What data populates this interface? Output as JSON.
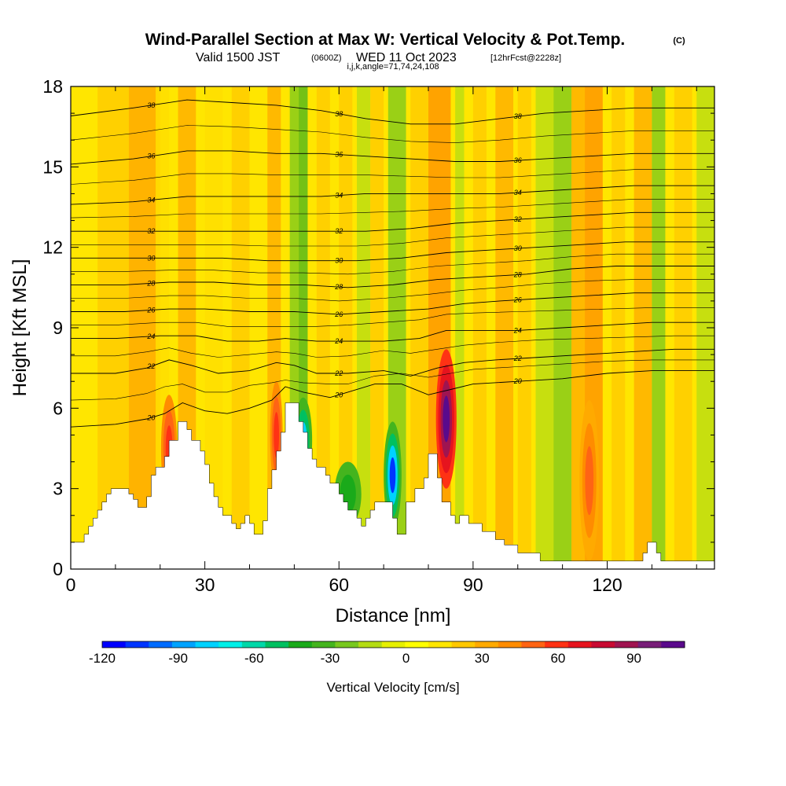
{
  "title": {
    "main": "Wind-Parallel Section at Max W: Vertical Velocity & Pot.Temp.",
    "copyright": "(C)",
    "valid_a": "Valid 1500 JST",
    "valid_utc": "(0600Z)",
    "valid_b": "WED 11 Oct 2023",
    "forecast": "[12hrFcst@2228z]",
    "params": "i,j,k,angle=71,74,24,108"
  },
  "chart_data": {
    "type": "heatmap",
    "xlabel": "Distance [nm]",
    "ylabel": "Height [Kft MSL]",
    "xlim": [
      0,
      144
    ],
    "ylim": [
      0,
      18
    ],
    "xticks": [
      0,
      30,
      60,
      90,
      120
    ],
    "yticks": [
      0,
      3,
      6,
      9,
      12,
      15,
      18
    ],
    "colorbar": {
      "label": "Vertical Velocity [cm/s]",
      "ticks": [
        -120,
        -90,
        -60,
        -30,
        0,
        30,
        60,
        90
      ],
      "range": [
        -120,
        110
      ],
      "colors": [
        "#0000ff",
        "#0036ff",
        "#006cff",
        "#00a3ff",
        "#00d2ff",
        "#00f0e8",
        "#00d8a8",
        "#00c060",
        "#1aaa1a",
        "#44b41e",
        "#78c81e",
        "#b4dc14",
        "#e6f000",
        "#ffff00",
        "#ffe600",
        "#ffc800",
        "#ffaa00",
        "#ff8c00",
        "#ff6414",
        "#ff3214",
        "#e6141e",
        "#c80a32",
        "#a01450",
        "#781e78",
        "#5a0a8c"
      ]
    },
    "terrain_profile": [
      [
        0,
        1
      ],
      [
        3,
        1
      ],
      [
        3,
        1.3
      ],
      [
        4,
        1.3
      ],
      [
        4,
        1.6
      ],
      [
        5,
        1.6
      ],
      [
        5,
        1.9
      ],
      [
        6,
        1.9
      ],
      [
        6,
        2.2
      ],
      [
        7,
        2.2
      ],
      [
        7,
        2.5
      ],
      [
        8,
        2.5
      ],
      [
        8,
        2.8
      ],
      [
        9,
        2.8
      ],
      [
        9,
        3
      ],
      [
        13,
        3
      ],
      [
        13,
        2.8
      ],
      [
        14,
        2.8
      ],
      [
        14,
        2.6
      ],
      [
        15,
        2.6
      ],
      [
        15,
        2.3
      ],
      [
        17,
        2.3
      ],
      [
        17,
        2.7
      ],
      [
        18,
        2.7
      ],
      [
        18,
        3.5
      ],
      [
        19,
        3.5
      ],
      [
        19,
        3.8
      ],
      [
        21,
        3.8
      ],
      [
        21,
        4.2
      ],
      [
        22,
        4.2
      ],
      [
        22,
        4.8
      ],
      [
        24,
        4.8
      ],
      [
        24,
        5.5
      ],
      [
        26,
        5.5
      ],
      [
        26,
        5.2
      ],
      [
        27,
        5.2
      ],
      [
        27,
        4.8
      ],
      [
        29,
        4.8
      ],
      [
        29,
        4.4
      ],
      [
        30,
        4.4
      ],
      [
        30,
        3.9
      ],
      [
        31,
        3.9
      ],
      [
        31,
        3.2
      ],
      [
        32,
        3.2
      ],
      [
        32,
        2.7
      ],
      [
        33,
        2.7
      ],
      [
        33,
        2.3
      ],
      [
        34,
        2.3
      ],
      [
        34,
        2
      ],
      [
        36,
        2
      ],
      [
        36,
        1.7
      ],
      [
        37,
        1.7
      ],
      [
        37,
        1.5
      ],
      [
        38,
        1.5
      ],
      [
        38,
        1.7
      ],
      [
        39,
        1.7
      ],
      [
        39,
        2
      ],
      [
        40,
        2
      ],
      [
        40,
        1.7
      ],
      [
        41,
        1.7
      ],
      [
        41,
        1.3
      ],
      [
        43,
        1.3
      ],
      [
        43,
        1.8
      ],
      [
        44,
        1.8
      ],
      [
        44,
        3
      ],
      [
        45,
        3
      ],
      [
        45,
        3.7
      ],
      [
        46,
        3.7
      ],
      [
        46,
        4.4
      ],
      [
        47,
        4.4
      ],
      [
        47,
        5.1
      ],
      [
        48,
        5.1
      ],
      [
        48,
        6.2
      ],
      [
        51,
        6.2
      ],
      [
        51,
        5.5
      ],
      [
        52,
        5.5
      ],
      [
        52,
        5.1
      ],
      [
        53,
        5.1
      ],
      [
        53,
        4.5
      ],
      [
        54,
        4.5
      ],
      [
        54,
        4.1
      ],
      [
        55,
        4.1
      ],
      [
        55,
        3.8
      ],
      [
        57,
        3.8
      ],
      [
        57,
        3.5
      ],
      [
        58,
        3.5
      ],
      [
        58,
        3.2
      ],
      [
        60,
        3.2
      ],
      [
        60,
        2.8
      ],
      [
        61,
        2.8
      ],
      [
        61,
        2.5
      ],
      [
        62,
        2.5
      ],
      [
        62,
        2.2
      ],
      [
        64,
        2.2
      ],
      [
        64,
        1.9
      ],
      [
        65,
        1.9
      ],
      [
        65,
        1.6
      ],
      [
        66,
        1.6
      ],
      [
        66,
        1.9
      ],
      [
        67,
        1.9
      ],
      [
        67,
        2.2
      ],
      [
        68,
        2.2
      ],
      [
        68,
        2.5
      ],
      [
        72,
        2.5
      ],
      [
        72,
        1.9
      ],
      [
        73,
        1.9
      ],
      [
        73,
        1.3
      ],
      [
        75,
        1.3
      ],
      [
        75,
        2.5
      ],
      [
        77,
        2.5
      ],
      [
        77,
        3
      ],
      [
        79,
        3
      ],
      [
        79,
        3.4
      ],
      [
        80,
        3.4
      ],
      [
        80,
        4.3
      ],
      [
        82,
        4.3
      ],
      [
        82,
        3.4
      ],
      [
        83,
        3.4
      ],
      [
        83,
        2.5
      ],
      [
        85,
        2.5
      ],
      [
        85,
        2
      ],
      [
        86,
        2
      ],
      [
        86,
        1.7
      ],
      [
        87,
        1.7
      ],
      [
        87,
        2
      ],
      [
        89,
        2
      ],
      [
        89,
        1.7
      ],
      [
        92,
        1.7
      ],
      [
        92,
        1.4
      ],
      [
        95,
        1.4
      ],
      [
        95,
        1.1
      ],
      [
        97,
        1.1
      ],
      [
        97,
        0.9
      ],
      [
        100,
        0.9
      ],
      [
        100,
        0.6
      ],
      [
        105,
        0.6
      ],
      [
        105,
        0.3
      ],
      [
        128,
        0.3
      ],
      [
        128,
        0.6
      ],
      [
        129,
        0.6
      ],
      [
        129,
        1
      ],
      [
        131,
        1
      ],
      [
        131,
        0.6
      ],
      [
        132,
        0.6
      ],
      [
        132,
        0.3
      ],
      [
        144,
        0.3
      ],
      [
        144,
        0
      ]
    ],
    "theta_contours": [
      {
        "value": 20,
        "label": "20",
        "levels": [
          [
            0,
            5.3
          ],
          [
            10,
            5.4
          ],
          [
            17,
            5.6
          ],
          [
            21,
            5.8
          ],
          [
            25,
            6.2
          ],
          [
            30,
            5.9
          ],
          [
            35,
            5.8
          ],
          [
            40,
            6
          ],
          [
            45,
            6.3
          ],
          [
            48,
            6.8
          ],
          [
            52,
            6.6
          ],
          [
            58,
            6.4
          ],
          [
            62,
            6.6
          ],
          [
            68,
            6.9
          ],
          [
            74,
            6.9
          ],
          [
            80,
            6.5
          ],
          [
            85,
            6.7
          ],
          [
            90,
            6.9
          ],
          [
            100,
            7
          ],
          [
            110,
            7.1
          ],
          [
            120,
            7.3
          ],
          [
            130,
            7.4
          ],
          [
            144,
            7.4
          ]
        ]
      },
      {
        "value": 22,
        "label": "22",
        "levels": [
          [
            0,
            7.3
          ],
          [
            10,
            7.3
          ],
          [
            17,
            7.5
          ],
          [
            22,
            7.8
          ],
          [
            27,
            7.6
          ],
          [
            33,
            7.3
          ],
          [
            40,
            7.4
          ],
          [
            46,
            7.7
          ],
          [
            50,
            7.6
          ],
          [
            55,
            7.3
          ],
          [
            62,
            7.3
          ],
          [
            70,
            7.4
          ],
          [
            76,
            7.2
          ],
          [
            82,
            7.5
          ],
          [
            88,
            7.7
          ],
          [
            95,
            7.8
          ],
          [
            105,
            7.9
          ],
          [
            115,
            8.0
          ],
          [
            125,
            8.1
          ],
          [
            135,
            8.2
          ],
          [
            144,
            8.2
          ]
        ]
      },
      {
        "value": 24,
        "label": "24",
        "levels": [
          [
            0,
            8.6
          ],
          [
            10,
            8.6
          ],
          [
            20,
            8.7
          ],
          [
            28,
            8.7
          ],
          [
            35,
            8.5
          ],
          [
            42,
            8.5
          ],
          [
            48,
            8.6
          ],
          [
            55,
            8.5
          ],
          [
            62,
            8.5
          ],
          [
            70,
            8.5
          ],
          [
            78,
            8.6
          ],
          [
            84,
            8.9
          ],
          [
            90,
            8.9
          ],
          [
            100,
            8.9
          ],
          [
            110,
            9.0
          ],
          [
            120,
            9.1
          ],
          [
            130,
            9.2
          ],
          [
            144,
            9.2
          ]
        ]
      },
      {
        "value": 26,
        "label": "26",
        "levels": [
          [
            0,
            9.6
          ],
          [
            12,
            9.6
          ],
          [
            22,
            9.7
          ],
          [
            30,
            9.7
          ],
          [
            40,
            9.6
          ],
          [
            50,
            9.6
          ],
          [
            60,
            9.5
          ],
          [
            70,
            9.6
          ],
          [
            80,
            9.7
          ],
          [
            88,
            9.9
          ],
          [
            96,
            10.0
          ],
          [
            106,
            10.1
          ],
          [
            116,
            10.2
          ],
          [
            126,
            10.3
          ],
          [
            144,
            10.3
          ]
        ]
      },
      {
        "value": 28,
        "label": "28",
        "levels": [
          [
            0,
            10.6
          ],
          [
            12,
            10.6
          ],
          [
            22,
            10.7
          ],
          [
            32,
            10.7
          ],
          [
            42,
            10.6
          ],
          [
            52,
            10.6
          ],
          [
            62,
            10.5
          ],
          [
            72,
            10.6
          ],
          [
            82,
            10.8
          ],
          [
            92,
            10.9
          ],
          [
            102,
            11.0
          ],
          [
            112,
            11.2
          ],
          [
            122,
            11.3
          ],
          [
            144,
            11.3
          ]
        ]
      },
      {
        "value": 30,
        "label": "30",
        "levels": [
          [
            0,
            11.6
          ],
          [
            12,
            11.6
          ],
          [
            24,
            11.6
          ],
          [
            34,
            11.6
          ],
          [
            44,
            11.5
          ],
          [
            54,
            11.5
          ],
          [
            64,
            11.5
          ],
          [
            74,
            11.6
          ],
          [
            84,
            11.8
          ],
          [
            94,
            11.9
          ],
          [
            104,
            12.0
          ],
          [
            114,
            12.1
          ],
          [
            124,
            12.2
          ],
          [
            144,
            12.2
          ]
        ]
      },
      {
        "value": 32,
        "label": "32",
        "levels": [
          [
            0,
            12.6
          ],
          [
            14,
            12.6
          ],
          [
            26,
            12.6
          ],
          [
            36,
            12.6
          ],
          [
            46,
            12.6
          ],
          [
            56,
            12.6
          ],
          [
            66,
            12.6
          ],
          [
            76,
            12.7
          ],
          [
            86,
            12.9
          ],
          [
            96,
            13.0
          ],
          [
            106,
            13.1
          ],
          [
            116,
            13.2
          ],
          [
            126,
            13.3
          ],
          [
            144,
            13.3
          ]
        ]
      },
      {
        "value": 34,
        "label": "34",
        "levels": [
          [
            0,
            13.6
          ],
          [
            14,
            13.7
          ],
          [
            26,
            13.9
          ],
          [
            36,
            13.9
          ],
          [
            46,
            13.9
          ],
          [
            56,
            13.9
          ],
          [
            66,
            14.0
          ],
          [
            76,
            14.0
          ],
          [
            86,
            14.0
          ],
          [
            96,
            14.0
          ],
          [
            106,
            14.1
          ],
          [
            116,
            14.2
          ],
          [
            126,
            14.3
          ],
          [
            144,
            14.3
          ]
        ]
      },
      {
        "value": 36,
        "label": "36",
        "levels": [
          [
            0,
            15.1
          ],
          [
            14,
            15.3
          ],
          [
            26,
            15.6
          ],
          [
            36,
            15.6
          ],
          [
            46,
            15.5
          ],
          [
            56,
            15.5
          ],
          [
            66,
            15.4
          ],
          [
            76,
            15.3
          ],
          [
            86,
            15.2
          ],
          [
            96,
            15.2
          ],
          [
            106,
            15.3
          ],
          [
            116,
            15.4
          ],
          [
            126,
            15.5
          ],
          [
            144,
            15.5
          ]
        ]
      },
      {
        "value": 38,
        "label": "38",
        "levels": [
          [
            0,
            16.9
          ],
          [
            14,
            17.2
          ],
          [
            26,
            17.5
          ],
          [
            36,
            17.4
          ],
          [
            46,
            17.3
          ],
          [
            56,
            17.1
          ],
          [
            66,
            16.8
          ],
          [
            76,
            16.6
          ],
          [
            86,
            16.6
          ],
          [
            96,
            16.8
          ],
          [
            106,
            17.0
          ],
          [
            116,
            17.1
          ],
          [
            126,
            17.2
          ],
          [
            144,
            17.2
          ]
        ]
      }
    ]
  }
}
